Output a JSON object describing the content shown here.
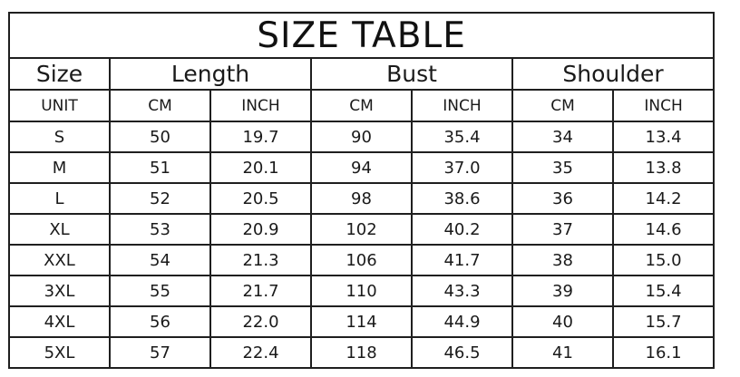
{
  "chart_data": {
    "type": "table",
    "title": "SIZE TABLE",
    "column_groups": [
      "Size",
      "Length",
      "Bust",
      "Shoulder"
    ],
    "subcolumns": [
      "UNIT",
      "CM",
      "INCH",
      "CM",
      "INCH",
      "CM",
      "INCH"
    ],
    "rows": [
      [
        "S",
        "50",
        "19.7",
        "90",
        "35.4",
        "34",
        "13.4"
      ],
      [
        "M",
        "51",
        "20.1",
        "94",
        "37.0",
        "35",
        "13.8"
      ],
      [
        "L",
        "52",
        "20.5",
        "98",
        "38.6",
        "36",
        "14.2"
      ],
      [
        "XL",
        "53",
        "20.9",
        "102",
        "40.2",
        "37",
        "14.6"
      ],
      [
        "XXL",
        "54",
        "21.3",
        "106",
        "41.7",
        "38",
        "15.0"
      ],
      [
        "3XL",
        "55",
        "21.7",
        "110",
        "43.3",
        "39",
        "15.4"
      ],
      [
        "4XL",
        "56",
        "22.0",
        "114",
        "44.9",
        "40",
        "15.7"
      ],
      [
        "5XL",
        "57",
        "22.4",
        "118",
        "46.5",
        "41",
        "16.1"
      ]
    ],
    "layout": {
      "grid": "on",
      "border_color": "#1f1f1f",
      "text_color": "#1a1a1a",
      "background_color": "#ffffff"
    }
  }
}
